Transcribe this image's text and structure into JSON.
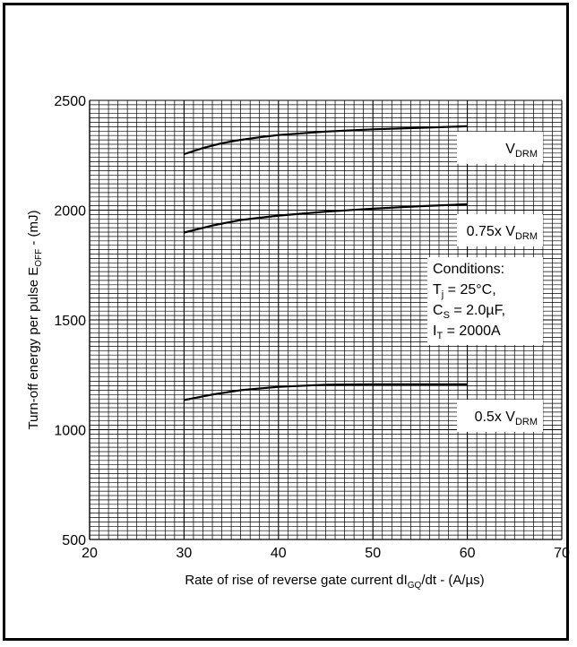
{
  "chart_data": {
    "type": "line",
    "xlabel": {
      "main": "Rate of rise of reverse gate current dI",
      "sub": "GQ",
      "tail": "/dt - (A/µs)"
    },
    "ylabel": {
      "main": "Turn-off energy per pulse E",
      "sub": "OFF",
      "tail": " - (mJ)"
    },
    "xlim": [
      20,
      70
    ],
    "ylim": [
      500,
      2500
    ],
    "x_ticks": [
      "20",
      "30",
      "40",
      "50",
      "60",
      "70"
    ],
    "y_ticks": [
      "500",
      "1000",
      "1500",
      "2000",
      "2500"
    ],
    "grid": true,
    "series": [
      {
        "name": "V_DRM",
        "label_parts": {
          "pre": "V",
          "sub": "DRM"
        },
        "x": [
          30,
          32,
          34,
          36,
          38,
          40,
          45,
          50,
          55,
          60
        ],
        "y": [
          2255,
          2283,
          2305,
          2320,
          2332,
          2342,
          2358,
          2368,
          2375,
          2382
        ]
      },
      {
        "name": "0.75x V_DRM",
        "label_parts": {
          "pre": "0.75x V",
          "sub": "DRM"
        },
        "x": [
          30,
          33,
          36,
          40,
          45,
          50,
          55,
          60
        ],
        "y": [
          1898,
          1930,
          1955,
          1975,
          1993,
          2007,
          2018,
          2027
        ]
      },
      {
        "name": "0.5x V_DRM",
        "label_parts": {
          "pre": "0.5x V",
          "sub": "DRM"
        },
        "x": [
          30,
          33,
          36,
          40,
          45,
          50,
          55,
          60
        ],
        "y": [
          1135,
          1160,
          1180,
          1195,
          1205,
          1207,
          1207,
          1207
        ]
      }
    ],
    "annotation": {
      "lines": [
        {
          "pre": "Conditions:",
          "sub": "",
          "post": ""
        },
        {
          "pre": "T",
          "sub": "j",
          "post": " = 25°C,"
        },
        {
          "pre": "C",
          "sub": "S",
          "post": " = 2.0µF,"
        },
        {
          "pre": "I",
          "sub": "T",
          "post": " = 2000A"
        }
      ]
    },
    "colors": {
      "line": "#000000",
      "grid": "#000000",
      "background": "#ffffff"
    }
  }
}
